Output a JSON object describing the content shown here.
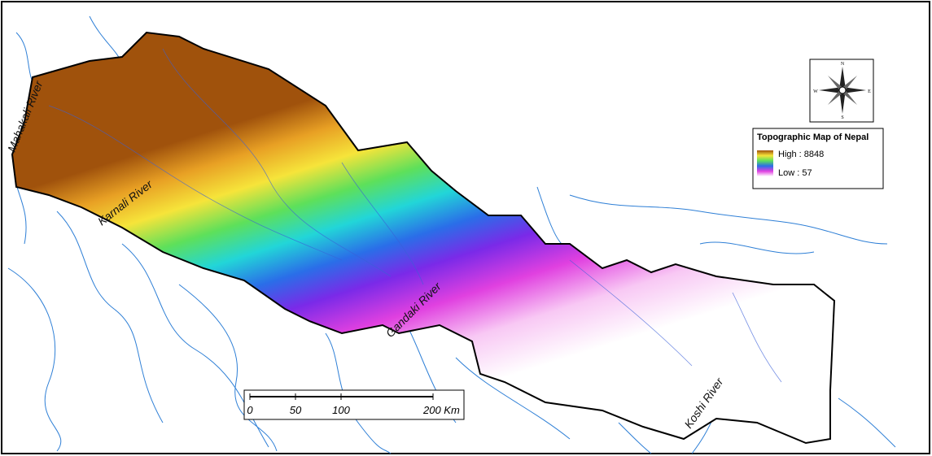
{
  "map": {
    "rivers": [
      "Mahakali River",
      "Karnali River",
      "Gandaki River",
      "Koshi River"
    ],
    "compass": {
      "north": "N",
      "east": "E",
      "south": "S",
      "west": "W"
    },
    "legend": {
      "title": "Topographic Map of Nepal",
      "high": "High : 8848",
      "low": "Low : 57"
    },
    "scale_bar": {
      "labels": [
        "0",
        "50",
        "100",
        "200 Km"
      ]
    }
  }
}
